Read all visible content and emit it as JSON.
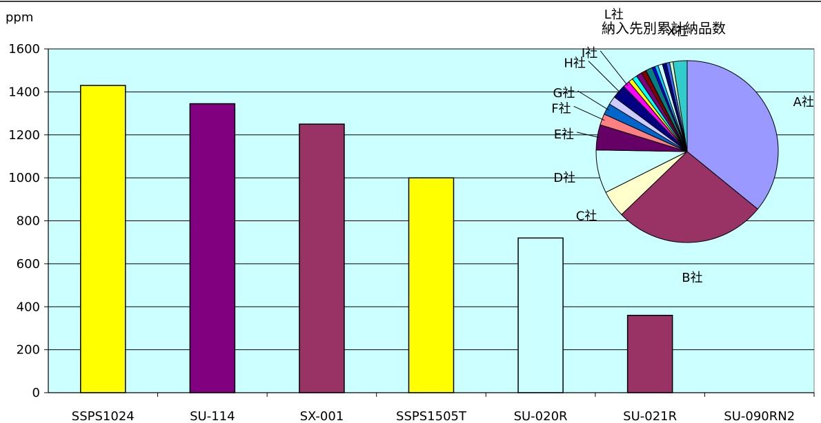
{
  "chart_data": [
    {
      "type": "bar",
      "ylabel": "ppm",
      "ylim": [
        0,
        1600
      ],
      "yticks": [
        0,
        200,
        400,
        600,
        800,
        1000,
        1200,
        1400,
        1600
      ],
      "grid": true,
      "plot_background": "#ccffff",
      "categories": [
        "SSPS1024",
        "SU-114",
        "SX-001",
        "SSPS1505T",
        "SU-020R",
        "SU-021R",
        "SU-090RN2"
      ],
      "values": [
        1430,
        1345,
        1250,
        1000,
        720,
        360,
        0
      ],
      "bar_colors": [
        "#ffff00",
        "#800080",
        "#993366",
        "#ffff00",
        "#ccffff",
        "#993366",
        "#ffffff"
      ]
    },
    {
      "type": "pie",
      "title": "納入先別累計納品数",
      "labels": [
        "A社",
        "B社",
        "C社",
        "D社",
        "E社",
        "F社",
        "G社",
        "H社",
        "I社",
        "L社",
        "X社"
      ],
      "slices": [
        {
          "label": "A社",
          "value": 36.0,
          "color": "#9999ff"
        },
        {
          "label": "B社",
          "value": 27.0,
          "color": "#993366"
        },
        {
          "label": "C社",
          "value": 4.8,
          "color": "#ffffcc"
        },
        {
          "label": "D社",
          "value": 7.7,
          "color": "#ccffff"
        },
        {
          "label": "E社",
          "value": 4.5,
          "color": "#660066"
        },
        {
          "label": "F社",
          "value": 2.0,
          "color": "#ff8080"
        },
        {
          "label": "G社",
          "value": 2.0,
          "color": "#0066cc"
        },
        {
          "label": "",
          "value": 1.5,
          "color": "#ccccff"
        },
        {
          "label": "H社",
          "value": 2.5,
          "color": "#000080"
        },
        {
          "label": "I社",
          "value": 1.2,
          "color": "#ff00ff"
        },
        {
          "label": "",
          "value": 0.8,
          "color": "#ffff00"
        },
        {
          "label": "",
          "value": 0.9,
          "color": "#00ffff"
        },
        {
          "label": "",
          "value": 1.0,
          "color": "#800080"
        },
        {
          "label": "",
          "value": 0.9,
          "color": "#800000"
        },
        {
          "label": "L社",
          "value": 1.2,
          "color": "#008080"
        },
        {
          "label": "",
          "value": 0.5,
          "color": "#0000ff"
        },
        {
          "label": "",
          "value": 0.6,
          "color": "#00ccff"
        },
        {
          "label": "",
          "value": 0.8,
          "color": "#ccffff"
        },
        {
          "label": "",
          "value": 0.7,
          "color": "#000080"
        },
        {
          "label": "",
          "value": 0.6,
          "color": "#3366ff"
        },
        {
          "label": "",
          "value": 0.6,
          "color": "#ccffcc"
        },
        {
          "label": "X社",
          "value": 2.5,
          "color": "#33cccc"
        }
      ]
    }
  ]
}
